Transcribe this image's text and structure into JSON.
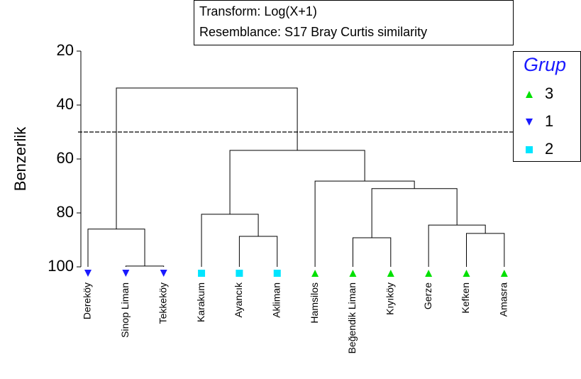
{
  "chart_data": {
    "type": "dendrogram",
    "annotations": [
      "Transform: Log(X+1)",
      "Resemblance: S17 Bray Curtis similarity"
    ],
    "ylabel": "Benzerlik",
    "ylim": [
      20,
      100
    ],
    "yticks": [
      20,
      40,
      60,
      80,
      100
    ],
    "threshold": 50,
    "legend": {
      "title": "Grup",
      "entries": [
        {
          "name": "3",
          "color": "#00e000",
          "marker": "triangle-up"
        },
        {
          "name": "1",
          "color": "#1a1aff",
          "marker": "triangle-down"
        },
        {
          "name": "2",
          "color": "#00e5ff",
          "marker": "square"
        }
      ]
    },
    "leaves": [
      {
        "label": "Dereköy",
        "group": 1
      },
      {
        "label": "Sinop Liman",
        "group": 1
      },
      {
        "label": "Tekkeköy",
        "group": 1
      },
      {
        "label": "Karakum",
        "group": 2
      },
      {
        "label": "Ayancık",
        "group": 2
      },
      {
        "label": "Akliman",
        "group": 2
      },
      {
        "label": "Hamsilos",
        "group": 0
      },
      {
        "label": "Beğendik Liman",
        "group": 0
      },
      {
        "label": "Kıyıköy",
        "group": 0
      },
      {
        "label": "Gerze",
        "group": 0
      },
      {
        "label": "Kefken",
        "group": 0
      },
      {
        "label": "Amasra",
        "group": 0
      }
    ],
    "merges": [
      {
        "children": [
          1,
          2
        ],
        "height": 99.7
      },
      {
        "children": [
          0,
          12
        ],
        "height": 86
      },
      {
        "children": [
          4,
          5
        ],
        "height": 88.7
      },
      {
        "children": [
          3,
          14
        ],
        "height": 80.5
      },
      {
        "children": [
          7,
          8
        ],
        "height": 89.2
      },
      {
        "children": [
          10,
          11
        ],
        "height": 87.6
      },
      {
        "children": [
          9,
          17
        ],
        "height": 84.5
      },
      {
        "children": [
          16,
          18
        ],
        "height": 71
      },
      {
        "children": [
          6,
          19
        ],
        "height": 68.2
      },
      {
        "children": [
          15,
          20
        ],
        "height": 56.8
      },
      {
        "children": [
          13,
          21
        ],
        "height": 33.7
      }
    ]
  }
}
